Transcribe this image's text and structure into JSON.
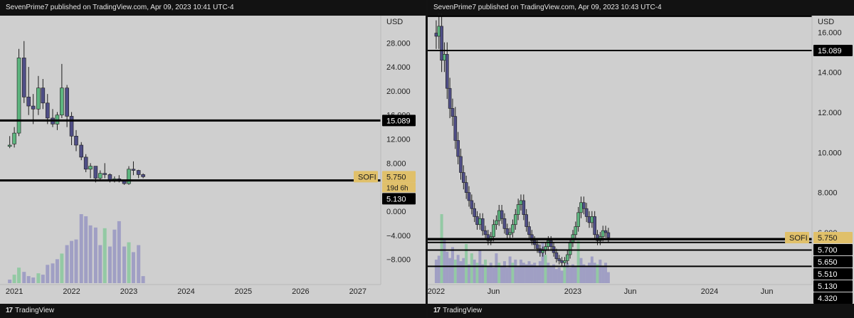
{
  "left": {
    "publish_text": "SevenPrime7 published on TradingView.com, Apr 09, 2023 10:41 UTC-4",
    "footer": "TradingView",
    "currency": "USD",
    "ticker": "SOFI",
    "countdown": "19d 6h",
    "price_badges": [
      {
        "value": 15.089,
        "text": "15.089",
        "style": "black"
      },
      {
        "value": 5.75,
        "text": "5.750",
        "style": "gold"
      },
      {
        "value": 5.13,
        "text": "5.130",
        "style": "black"
      }
    ]
  },
  "right": {
    "publish_text": "SevenPrime7 published on TradingView.com, Apr 09, 2023 10:43 UTC-4",
    "footer": "TradingView",
    "currency": "USD",
    "ticker": "SOFI",
    "price_badges": [
      {
        "value": 15.089,
        "text": "15.089",
        "style": "black"
      },
      {
        "value": 5.75,
        "text": "5.750",
        "style": "gold"
      },
      {
        "value": 5.7,
        "text": "5.700",
        "style": "black"
      },
      {
        "value": 5.65,
        "text": "5.650",
        "style": "black"
      },
      {
        "value": 5.51,
        "text": "5.510",
        "style": "black"
      },
      {
        "value": 5.13,
        "text": "5.130",
        "style": "black"
      },
      {
        "value": 4.32,
        "text": "4.320",
        "style": "black"
      }
    ]
  },
  "colors": {
    "background": "#cfcfcf",
    "bull": "#5db57f",
    "bear": "#4f4e86",
    "bull_volume": "#93c9a4",
    "bear_volume": "#a09fc4",
    "line": "#000000",
    "gold_badge": "#e0c06a",
    "header": "#121212"
  },
  "chart_data": [
    {
      "type": "candlestick",
      "title": "SOFI",
      "timeframe": "monthly",
      "currency": "USD",
      "ylim": [
        -11,
        33
      ],
      "yticks": [
        28,
        24,
        20,
        16,
        12,
        8,
        0,
        -4,
        -8
      ],
      "ytick_labels": [
        "28.000",
        "24.000",
        "20.000",
        "16.000",
        "12.000",
        "8.000",
        "0.000",
        "−4.000",
        "−8.000"
      ],
      "xlim": [
        2020.75,
        2027.4
      ],
      "xticks": [
        2021,
        2022,
        2023,
        2024,
        2025,
        2026,
        2027
      ],
      "xtick_labels": [
        "2021",
        "2022",
        "2023",
        "2024",
        "2025",
        "2026",
        "2027"
      ],
      "horizontal_lines": [
        15.089,
        5.13
      ],
      "candles": [
        {
          "x": 2020.92,
          "o": 10.8,
          "h": 12.5,
          "l": 10.5,
          "c": 11.0
        },
        {
          "x": 2021.0,
          "o": 11.2,
          "h": 14.0,
          "l": 10.6,
          "c": 13.0
        },
        {
          "x": 2021.08,
          "o": 13.0,
          "h": 27.0,
          "l": 12.5,
          "c": 25.5
        },
        {
          "x": 2021.17,
          "o": 25.5,
          "h": 28.3,
          "l": 18.0,
          "c": 19.0
        },
        {
          "x": 2021.25,
          "o": 19.0,
          "h": 24.0,
          "l": 16.0,
          "c": 17.5
        },
        {
          "x": 2021.33,
          "o": 17.5,
          "h": 19.5,
          "l": 14.5,
          "c": 17.0
        },
        {
          "x": 2021.42,
          "o": 17.0,
          "h": 22.5,
          "l": 16.0,
          "c": 20.5
        },
        {
          "x": 2021.5,
          "o": 20.5,
          "h": 22.0,
          "l": 17.0,
          "c": 18.0
        },
        {
          "x": 2021.58,
          "o": 18.0,
          "h": 19.5,
          "l": 14.5,
          "c": 15.5
        },
        {
          "x": 2021.67,
          "o": 15.5,
          "h": 17.0,
          "l": 14.0,
          "c": 14.5
        },
        {
          "x": 2021.75,
          "o": 14.5,
          "h": 16.5,
          "l": 13.5,
          "c": 16.0
        },
        {
          "x": 2021.83,
          "o": 16.0,
          "h": 24.5,
          "l": 15.5,
          "c": 20.5
        },
        {
          "x": 2021.92,
          "o": 20.5,
          "h": 21.0,
          "l": 14.0,
          "c": 15.8
        },
        {
          "x": 2022.0,
          "o": 15.8,
          "h": 16.5,
          "l": 11.0,
          "c": 12.5
        },
        {
          "x": 2022.08,
          "o": 12.5,
          "h": 13.5,
          "l": 10.0,
          "c": 11.0
        },
        {
          "x": 2022.17,
          "o": 11.0,
          "h": 11.5,
          "l": 8.5,
          "c": 9.0
        },
        {
          "x": 2022.25,
          "o": 9.0,
          "h": 9.5,
          "l": 6.5,
          "c": 7.0
        },
        {
          "x": 2022.33,
          "o": 7.0,
          "h": 8.0,
          "l": 5.5,
          "c": 7.5
        },
        {
          "x": 2022.42,
          "o": 7.5,
          "h": 7.5,
          "l": 4.8,
          "c": 5.5
        },
        {
          "x": 2022.5,
          "o": 5.5,
          "h": 6.8,
          "l": 5.2,
          "c": 6.3
        },
        {
          "x": 2022.58,
          "o": 6.3,
          "h": 8.0,
          "l": 5.5,
          "c": 6.1
        },
        {
          "x": 2022.67,
          "o": 6.1,
          "h": 6.3,
          "l": 4.8,
          "c": 5.2
        },
        {
          "x": 2022.75,
          "o": 5.2,
          "h": 5.8,
          "l": 4.8,
          "c": 5.4
        },
        {
          "x": 2022.83,
          "o": 5.4,
          "h": 6.0,
          "l": 4.8,
          "c": 5.0
        },
        {
          "x": 2022.92,
          "o": 5.0,
          "h": 5.2,
          "l": 4.4,
          "c": 4.6
        },
        {
          "x": 2023.0,
          "o": 4.6,
          "h": 7.5,
          "l": 4.4,
          "c": 7.0
        },
        {
          "x": 2023.08,
          "o": 7.0,
          "h": 8.3,
          "l": 6.0,
          "c": 6.8
        },
        {
          "x": 2023.17,
          "o": 6.8,
          "h": 6.9,
          "l": 5.5,
          "c": 6.1
        },
        {
          "x": 2023.25,
          "o": 6.1,
          "h": 6.3,
          "l": 5.5,
          "c": 5.75
        }
      ],
      "volume": [
        {
          "x": 2020.92,
          "v": 0.5,
          "up": false
        },
        {
          "x": 2021.0,
          "v": 1.2,
          "up": true
        },
        {
          "x": 2021.08,
          "v": 2.2,
          "up": true
        },
        {
          "x": 2021.17,
          "v": 1.6,
          "up": false
        },
        {
          "x": 2021.25,
          "v": 1.0,
          "up": false
        },
        {
          "x": 2021.33,
          "v": 0.8,
          "up": false
        },
        {
          "x": 2021.42,
          "v": 1.4,
          "up": true
        },
        {
          "x": 2021.5,
          "v": 1.2,
          "up": false
        },
        {
          "x": 2021.58,
          "v": 2.6,
          "up": false
        },
        {
          "x": 2021.67,
          "v": 2.8,
          "up": false
        },
        {
          "x": 2021.75,
          "v": 3.4,
          "up": false
        },
        {
          "x": 2021.83,
          "v": 4.2,
          "up": true
        },
        {
          "x": 2021.92,
          "v": 5.4,
          "up": false
        },
        {
          "x": 2022.0,
          "v": 6.0,
          "up": false
        },
        {
          "x": 2022.08,
          "v": 6.2,
          "up": false
        },
        {
          "x": 2022.17,
          "v": 9.8,
          "up": false
        },
        {
          "x": 2022.25,
          "v": 9.5,
          "up": false
        },
        {
          "x": 2022.33,
          "v": 8.2,
          "up": false
        },
        {
          "x": 2022.42,
          "v": 7.9,
          "up": false
        },
        {
          "x": 2022.5,
          "v": 5.4,
          "up": false
        },
        {
          "x": 2022.58,
          "v": 7.8,
          "up": true
        },
        {
          "x": 2022.67,
          "v": 5.2,
          "up": false
        },
        {
          "x": 2022.75,
          "v": 7.6,
          "up": false
        },
        {
          "x": 2022.83,
          "v": 8.8,
          "up": false
        },
        {
          "x": 2022.92,
          "v": 5.2,
          "up": false
        },
        {
          "x": 2023.0,
          "v": 5.8,
          "up": true
        },
        {
          "x": 2023.08,
          "v": 4.4,
          "up": false
        },
        {
          "x": 2023.17,
          "v": 5.4,
          "up": false
        },
        {
          "x": 2023.25,
          "v": 1.0,
          "up": false
        }
      ]
    },
    {
      "type": "candlestick",
      "title": "SOFI",
      "timeframe": "daily",
      "currency": "USD",
      "ylim": [
        3.55,
        16.9
      ],
      "yticks": [
        16,
        14,
        12,
        10,
        8,
        6
      ],
      "ytick_labels": [
        "16.000",
        "14.000",
        "12.000",
        "10.000",
        "8.000",
        "6.000"
      ],
      "xlim": [
        2021.99,
        2024.75
      ],
      "xticks": [
        2022.0,
        2022.42,
        2023.0,
        2023.42,
        2024.0,
        2024.42
      ],
      "xtick_labels": [
        "2022",
        "Jun",
        "2023",
        "Jun",
        "2024",
        "Jun"
      ],
      "horizontal_lines": [
        16.8,
        15.089,
        5.7,
        5.65,
        5.51,
        5.13,
        4.32
      ],
      "price_series": [
        {
          "x": 2022.0,
          "c": 15.8
        },
        {
          "x": 2022.02,
          "c": 16.3
        },
        {
          "x": 2022.04,
          "c": 14.6
        },
        {
          "x": 2022.06,
          "c": 14.9
        },
        {
          "x": 2022.08,
          "c": 13.2
        },
        {
          "x": 2022.1,
          "c": 12.2
        },
        {
          "x": 2022.12,
          "c": 11.8
        },
        {
          "x": 2022.14,
          "c": 10.6
        },
        {
          "x": 2022.16,
          "c": 9.8
        },
        {
          "x": 2022.18,
          "c": 9.0
        },
        {
          "x": 2022.2,
          "c": 8.5
        },
        {
          "x": 2022.22,
          "c": 8.0
        },
        {
          "x": 2022.24,
          "c": 7.6
        },
        {
          "x": 2022.26,
          "c": 7.2
        },
        {
          "x": 2022.28,
          "c": 6.8
        },
        {
          "x": 2022.3,
          "c": 6.4
        },
        {
          "x": 2022.32,
          "c": 6.7
        },
        {
          "x": 2022.34,
          "c": 6.1
        },
        {
          "x": 2022.36,
          "c": 5.9
        },
        {
          "x": 2022.38,
          "c": 5.6
        },
        {
          "x": 2022.4,
          "c": 5.8
        },
        {
          "x": 2022.42,
          "c": 6.4
        },
        {
          "x": 2022.44,
          "c": 6.6
        },
        {
          "x": 2022.46,
          "c": 7.1
        },
        {
          "x": 2022.48,
          "c": 6.7
        },
        {
          "x": 2022.5,
          "c": 6.2
        },
        {
          "x": 2022.52,
          "c": 5.9
        },
        {
          "x": 2022.54,
          "c": 6.0
        },
        {
          "x": 2022.56,
          "c": 6.4
        },
        {
          "x": 2022.58,
          "c": 6.9
        },
        {
          "x": 2022.6,
          "c": 7.4
        },
        {
          "x": 2022.62,
          "c": 7.6
        },
        {
          "x": 2022.64,
          "c": 6.9
        },
        {
          "x": 2022.66,
          "c": 6.3
        },
        {
          "x": 2022.68,
          "c": 5.9
        },
        {
          "x": 2022.7,
          "c": 5.6
        },
        {
          "x": 2022.72,
          "c": 5.4
        },
        {
          "x": 2022.74,
          "c": 5.2
        },
        {
          "x": 2022.76,
          "c": 5.0
        },
        {
          "x": 2022.78,
          "c": 5.1
        },
        {
          "x": 2022.8,
          "c": 5.3
        },
        {
          "x": 2022.82,
          "c": 5.6
        },
        {
          "x": 2022.84,
          "c": 5.3
        },
        {
          "x": 2022.86,
          "c": 5.0
        },
        {
          "x": 2022.88,
          "c": 4.7
        },
        {
          "x": 2022.9,
          "c": 4.6
        },
        {
          "x": 2022.92,
          "c": 4.5
        },
        {
          "x": 2022.94,
          "c": 4.6
        },
        {
          "x": 2022.96,
          "c": 4.9
        },
        {
          "x": 2022.98,
          "c": 5.5
        },
        {
          "x": 2023.0,
          "c": 5.9
        },
        {
          "x": 2023.02,
          "c": 6.3
        },
        {
          "x": 2023.04,
          "c": 7.0
        },
        {
          "x": 2023.06,
          "c": 7.5
        },
        {
          "x": 2023.08,
          "c": 7.2
        },
        {
          "x": 2023.1,
          "c": 6.8
        },
        {
          "x": 2023.12,
          "c": 6.5
        },
        {
          "x": 2023.14,
          "c": 6.8
        },
        {
          "x": 2023.16,
          "c": 5.9
        },
        {
          "x": 2023.18,
          "c": 5.6
        },
        {
          "x": 2023.2,
          "c": 5.8
        },
        {
          "x": 2023.22,
          "c": 6.1
        },
        {
          "x": 2023.24,
          "c": 6.0
        },
        {
          "x": 2023.26,
          "c": 5.75
        }
      ],
      "volume": [
        {
          "x": 2022.0,
          "v": 3.0,
          "up": false
        },
        {
          "x": 2022.02,
          "v": 3.5,
          "up": false
        },
        {
          "x": 2022.04,
          "v": 8.8,
          "up": true
        },
        {
          "x": 2022.06,
          "v": 5.5,
          "up": false
        },
        {
          "x": 2022.08,
          "v": 4.0,
          "up": false
        },
        {
          "x": 2022.1,
          "v": 3.2,
          "up": false
        },
        {
          "x": 2022.12,
          "v": 4.6,
          "up": false
        },
        {
          "x": 2022.14,
          "v": 3.0,
          "up": true
        },
        {
          "x": 2022.16,
          "v": 3.6,
          "up": false
        },
        {
          "x": 2022.18,
          "v": 2.8,
          "up": false
        },
        {
          "x": 2022.2,
          "v": 3.2,
          "up": false
        },
        {
          "x": 2022.22,
          "v": 5.0,
          "up": true
        },
        {
          "x": 2022.24,
          "v": 2.4,
          "up": false
        },
        {
          "x": 2022.26,
          "v": 3.8,
          "up": true
        },
        {
          "x": 2022.28,
          "v": 3.0,
          "up": false
        },
        {
          "x": 2022.3,
          "v": 2.6,
          "up": true
        },
        {
          "x": 2022.32,
          "v": 4.2,
          "up": false
        },
        {
          "x": 2022.34,
          "v": 2.4,
          "up": false
        },
        {
          "x": 2022.36,
          "v": 3.0,
          "up": true
        },
        {
          "x": 2022.38,
          "v": 2.2,
          "up": false
        },
        {
          "x": 2022.4,
          "v": 2.6,
          "up": false
        },
        {
          "x": 2022.42,
          "v": 2.0,
          "up": false
        },
        {
          "x": 2022.44,
          "v": 3.8,
          "up": false
        },
        {
          "x": 2022.46,
          "v": 2.6,
          "up": true
        },
        {
          "x": 2022.48,
          "v": 2.2,
          "up": false
        },
        {
          "x": 2022.5,
          "v": 2.8,
          "up": false
        },
        {
          "x": 2022.52,
          "v": 2.0,
          "up": false
        },
        {
          "x": 2022.54,
          "v": 3.4,
          "up": false
        },
        {
          "x": 2022.56,
          "v": 2.6,
          "up": true
        },
        {
          "x": 2022.58,
          "v": 3.0,
          "up": false
        },
        {
          "x": 2022.6,
          "v": 2.2,
          "up": false
        },
        {
          "x": 2022.62,
          "v": 3.0,
          "up": false
        },
        {
          "x": 2022.64,
          "v": 2.6,
          "up": false
        },
        {
          "x": 2022.66,
          "v": 2.4,
          "up": false
        },
        {
          "x": 2022.68,
          "v": 2.8,
          "up": false
        },
        {
          "x": 2022.7,
          "v": 2.4,
          "up": false
        },
        {
          "x": 2022.72,
          "v": 2.6,
          "up": false
        },
        {
          "x": 2022.74,
          "v": 2.2,
          "up": false
        },
        {
          "x": 2022.76,
          "v": 2.8,
          "up": false
        },
        {
          "x": 2022.78,
          "v": 5.2,
          "up": false
        },
        {
          "x": 2022.8,
          "v": 3.6,
          "up": true
        },
        {
          "x": 2022.82,
          "v": 2.6,
          "up": false
        },
        {
          "x": 2022.84,
          "v": 2.2,
          "up": false
        },
        {
          "x": 2022.86,
          "v": 2.4,
          "up": false
        },
        {
          "x": 2022.88,
          "v": 1.8,
          "up": false
        },
        {
          "x": 2022.9,
          "v": 2.0,
          "up": false
        },
        {
          "x": 2022.92,
          "v": 1.6,
          "up": false
        },
        {
          "x": 2022.94,
          "v": 2.2,
          "up": true
        },
        {
          "x": 2022.96,
          "v": 2.6,
          "up": false
        },
        {
          "x": 2022.98,
          "v": 2.0,
          "up": false
        },
        {
          "x": 2023.0,
          "v": 2.4,
          "up": false
        },
        {
          "x": 2023.02,
          "v": 2.2,
          "up": false
        },
        {
          "x": 2023.04,
          "v": 5.4,
          "up": true
        },
        {
          "x": 2023.06,
          "v": 3.2,
          "up": false
        },
        {
          "x": 2023.08,
          "v": 2.4,
          "up": false
        },
        {
          "x": 2023.1,
          "v": 2.2,
          "up": false
        },
        {
          "x": 2023.12,
          "v": 2.6,
          "up": false
        },
        {
          "x": 2023.14,
          "v": 3.4,
          "up": false
        },
        {
          "x": 2023.16,
          "v": 2.6,
          "up": false
        },
        {
          "x": 2023.18,
          "v": 2.4,
          "up": true
        },
        {
          "x": 2023.2,
          "v": 3.0,
          "up": false
        },
        {
          "x": 2023.22,
          "v": 2.2,
          "up": false
        },
        {
          "x": 2023.24,
          "v": 2.6,
          "up": false
        },
        {
          "x": 2023.26,
          "v": 1.4,
          "up": false
        }
      ]
    }
  ]
}
